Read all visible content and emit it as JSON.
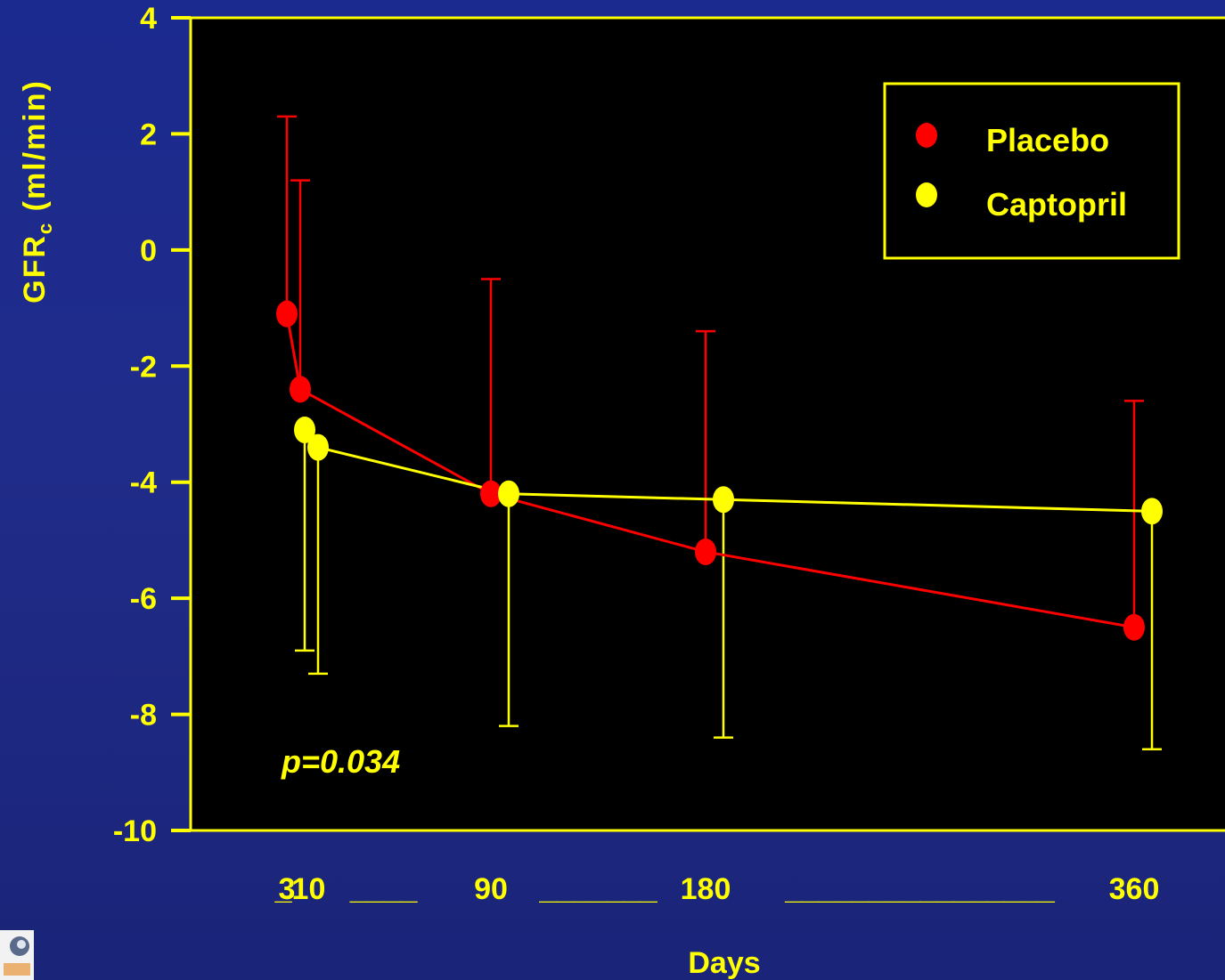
{
  "chart_data": {
    "type": "line",
    "ylabel_main": "GFR",
    "ylabel_sub": "c",
    "ylabel_unit": " (ml/min)",
    "xlabel": "Days",
    "ylim": [
      -10,
      4
    ],
    "y_ticks": [
      4,
      2,
      0,
      -2,
      -4,
      -6,
      -8,
      -10
    ],
    "x_ticks": [
      {
        "label": "3",
        "x": 3
      },
      {
        "label": "_10",
        "x": 10
      },
      {
        "label": "____",
        "x": 45
      },
      {
        "label": "90",
        "x": 90
      },
      {
        "label": "_______",
        "x": 135
      },
      {
        "label": "180",
        "x": 180
      },
      {
        "label": "________________",
        "x": 270
      },
      {
        "label": "360",
        "x": 360
      }
    ],
    "series": [
      {
        "name": "Placebo",
        "color": "#ff0000",
        "points": [
          {
            "x": 3,
            "y": -1.1,
            "err_up": 2.3,
            "err_down": null
          },
          {
            "x": 10,
            "y": -2.4,
            "err_up": 1.2,
            "err_down": null
          },
          {
            "x": 90,
            "y": -4.2,
            "err_up": -0.5,
            "err_down": null
          },
          {
            "x": 180,
            "y": -5.2,
            "err_up": -1.4,
            "err_down": null
          },
          {
            "x": 360,
            "y": -6.5,
            "err_up": -2.6,
            "err_down": null
          }
        ]
      },
      {
        "name": "Captopril",
        "color": "#ffff00",
        "points": [
          {
            "x": 3,
            "y": -3.1,
            "err_up": null,
            "err_down": -6.9
          },
          {
            "x": 10,
            "y": -3.4,
            "err_up": null,
            "err_down": -7.3
          },
          {
            "x": 90,
            "y": -4.2,
            "err_up": null,
            "err_down": -8.2
          },
          {
            "x": 180,
            "y": -4.3,
            "err_up": null,
            "err_down": -8.4
          },
          {
            "x": 360,
            "y": -4.5,
            "err_up": null,
            "err_down": -8.6
          }
        ]
      }
    ],
    "annotation": "p=0.034",
    "legend_position": "top-right",
    "plot_background": "#000000",
    "axis_color": "#ffff00"
  }
}
